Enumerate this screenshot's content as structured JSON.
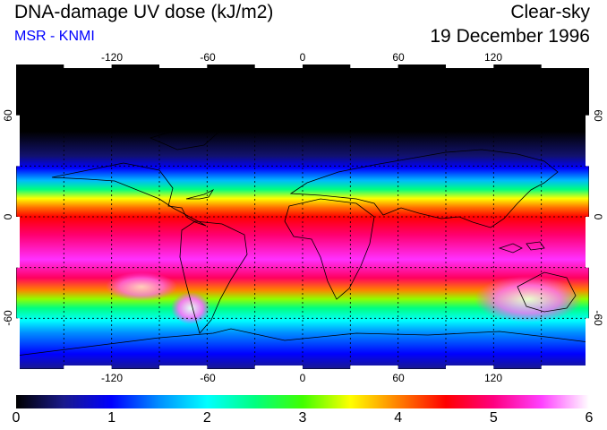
{
  "header": {
    "title": "DNA-damage UV dose (kJ/m2)",
    "subtitle": "MSR - KNMI",
    "condition": "Clear-sky",
    "date": "19 December 1996"
  },
  "map": {
    "longitude_ticks": [
      "-120",
      "-60",
      "0",
      "60",
      "120"
    ],
    "latitude_ticks_left": [
      "60",
      "0",
      "-60"
    ],
    "latitude_ticks_right": [
      "60",
      "0",
      "-60"
    ],
    "graticule": {
      "lon_step_deg": 30,
      "lat_step_deg": 30
    },
    "lon_range": [
      -180,
      180
    ],
    "lat_range": [
      -90,
      90
    ]
  },
  "colorbar": {
    "labels": [
      "0",
      "1",
      "2",
      "3",
      "4",
      "5",
      "6"
    ],
    "range": [
      0,
      6
    ],
    "stops": [
      "#000000",
      "#1a1a8c",
      "#0000ff",
      "#0090ff",
      "#00ffff",
      "#00ff80",
      "#40ff00",
      "#ffff00",
      "#ff8000",
      "#ff0000",
      "#ff0080",
      "#ff40ff",
      "#ffffff"
    ]
  },
  "colors": {
    "subtitle": "#0000ff",
    "coastline": "#000000",
    "graticule": "#000000"
  }
}
